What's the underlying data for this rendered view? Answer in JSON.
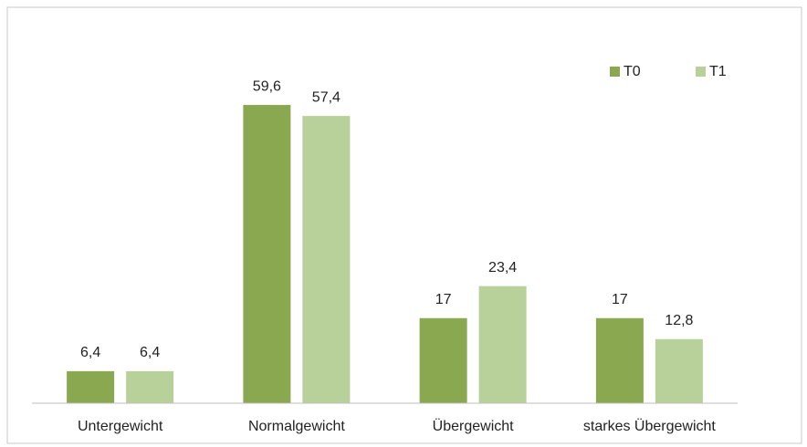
{
  "chart_data": {
    "type": "bar",
    "categories": [
      "Untergewicht",
      "Normalgewicht",
      "Übergewicht",
      "starkes Übergewicht"
    ],
    "series": [
      {
        "name": "T0",
        "color": "#8aa84f",
        "values": [
          6.4,
          59.6,
          17,
          17
        ],
        "value_labels": [
          "6,4",
          "59,6",
          "17",
          "17"
        ]
      },
      {
        "name": "T1",
        "color": "#b8d09a",
        "values": [
          6.4,
          57.4,
          23.4,
          12.8
        ],
        "value_labels": [
          "6,4",
          "57,4",
          "23,4",
          "12,8"
        ]
      }
    ],
    "ylim": [
      0,
      70
    ],
    "legend": "top-right"
  }
}
